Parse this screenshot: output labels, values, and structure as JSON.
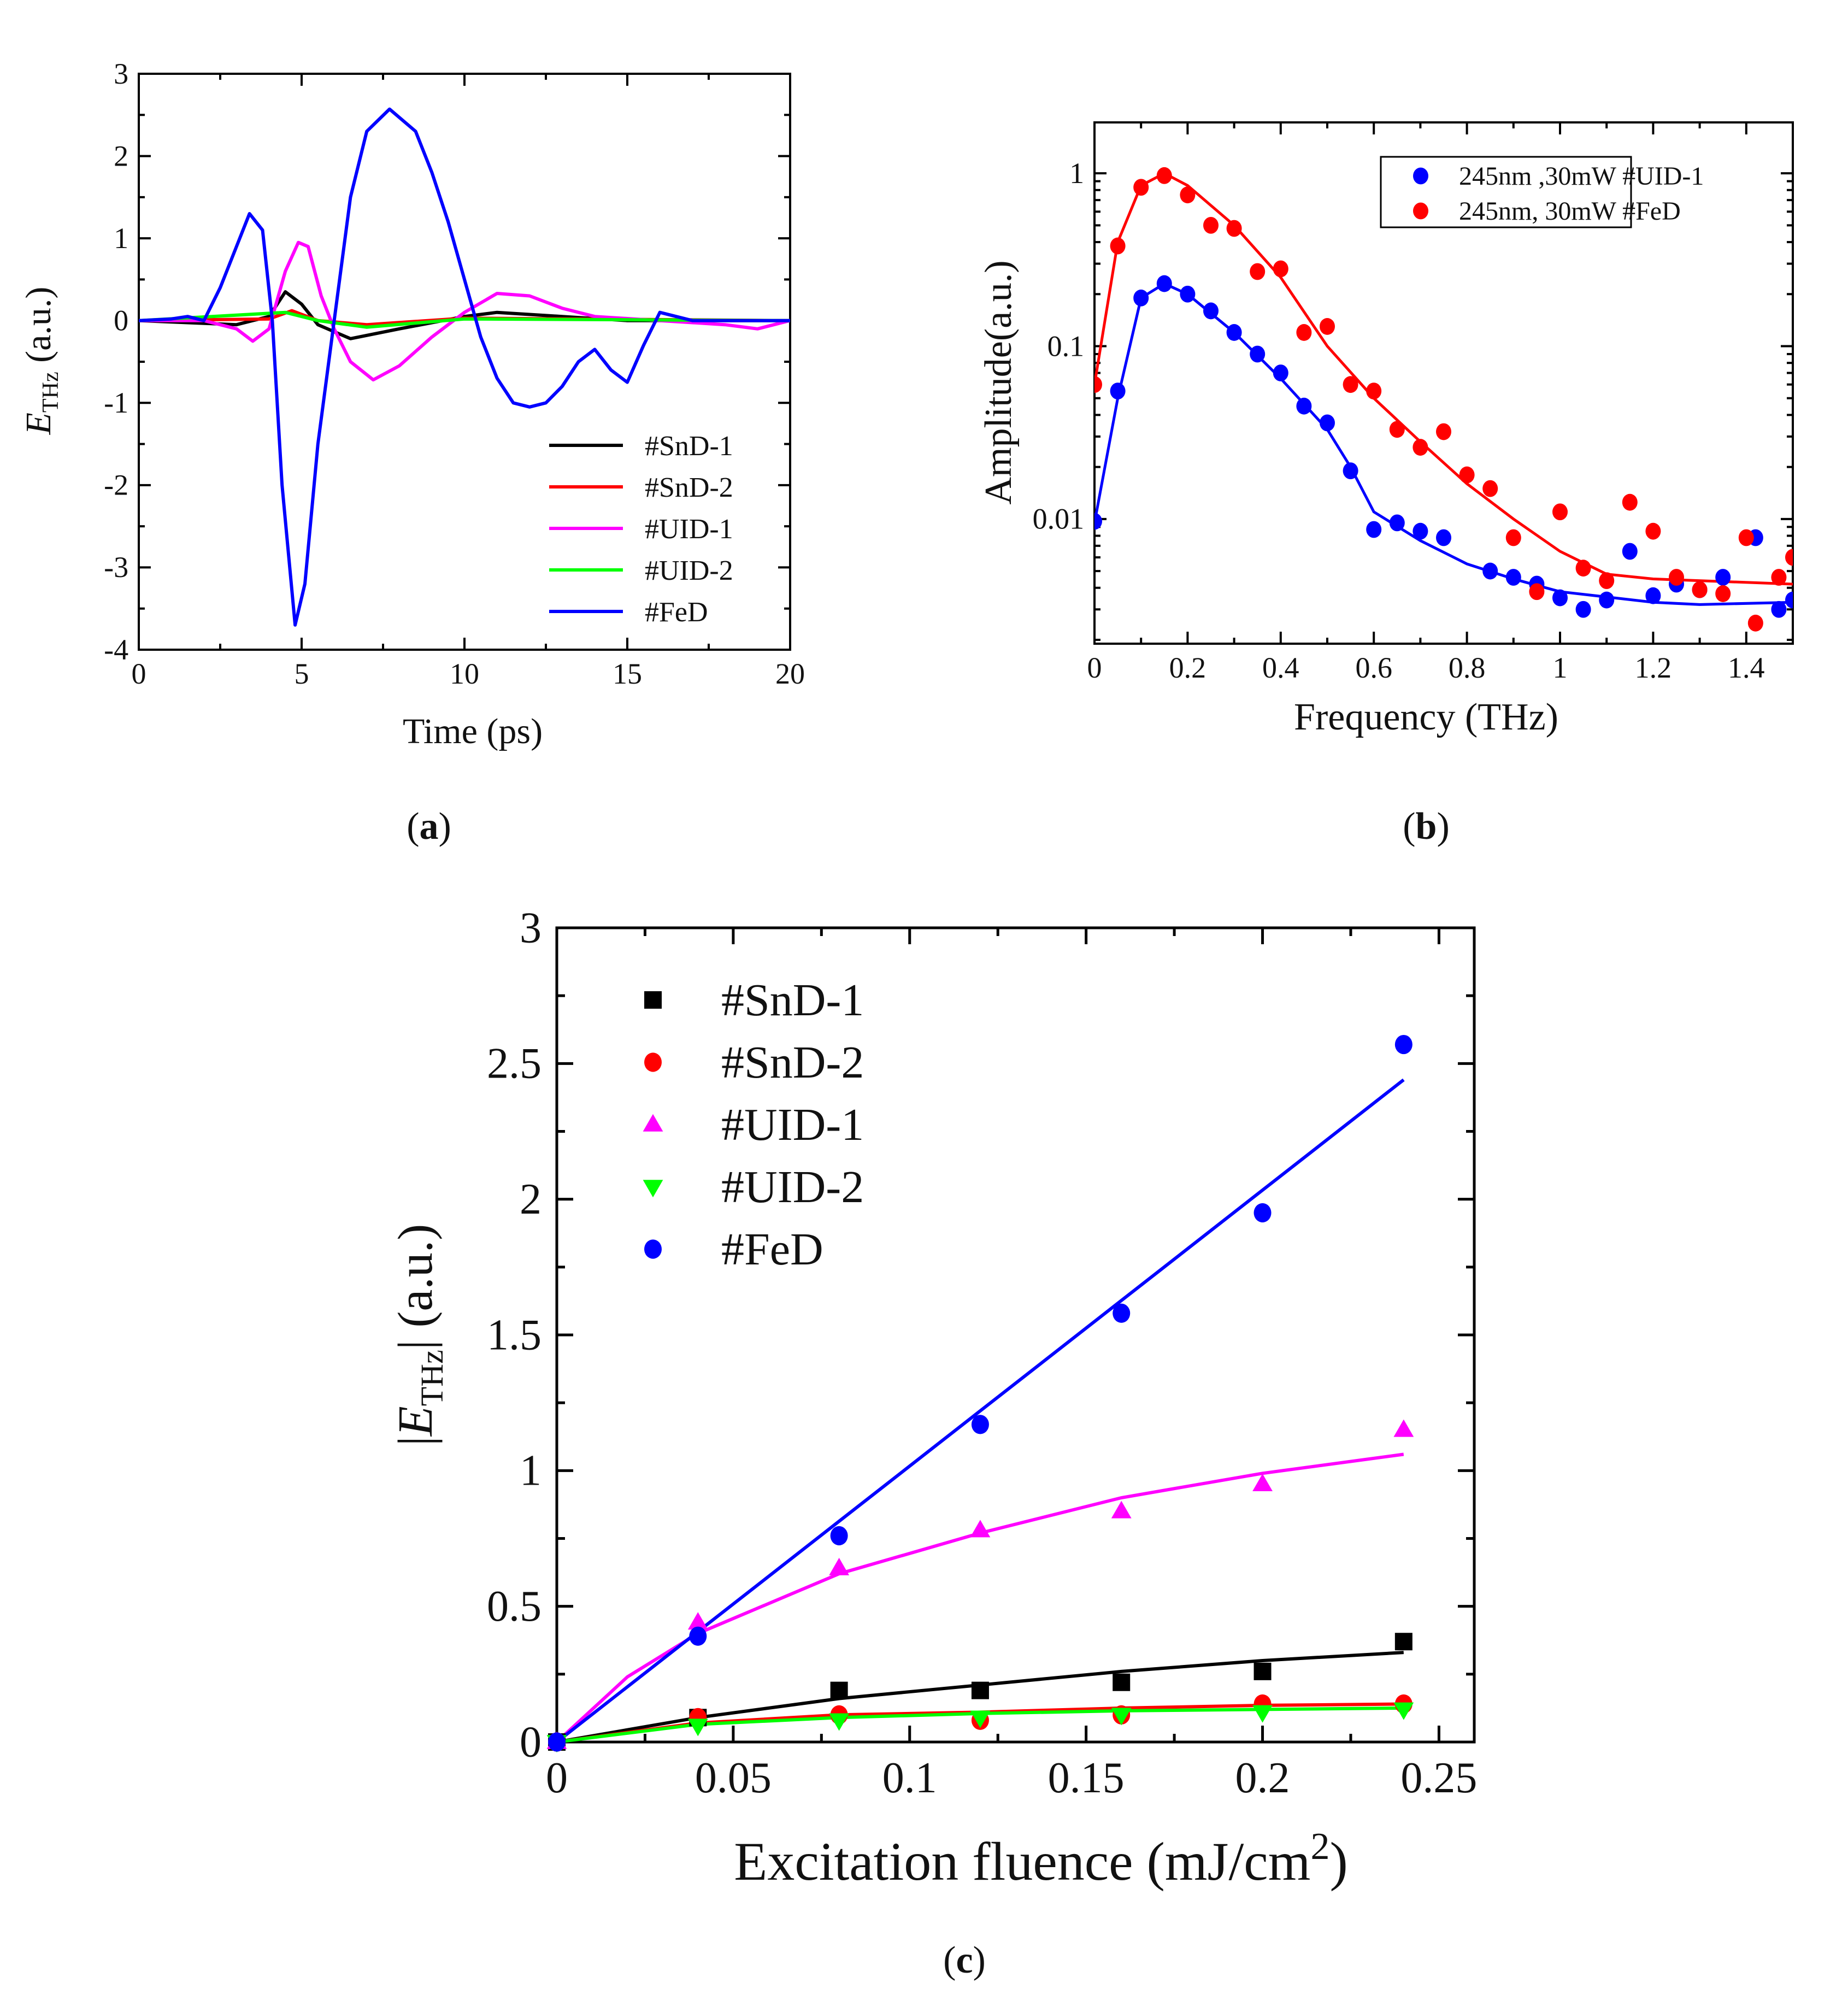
{
  "captions": {
    "a": "a",
    "b": "b",
    "c": "c"
  },
  "chart_data": [
    {
      "id": "a",
      "type": "line",
      "xlabel": "Time (ps)",
      "ylabel": {
        "main": "E",
        "sub": "THz",
        "rest": " (a.u.)"
      },
      "xlim": [
        0,
        20
      ],
      "ylim": [
        -4,
        3
      ],
      "xticks": [
        0,
        5,
        10,
        15,
        20
      ],
      "yticks": [
        -4,
        -3,
        -2,
        -1,
        0,
        1,
        2,
        3
      ],
      "legend_position": "bottom-right",
      "series": [
        {
          "name": "#SnD-1",
          "color": "#000000",
          "x": [
            0,
            3,
            4,
            4.5,
            5,
            5.5,
            6.5,
            8,
            10,
            11,
            13,
            15,
            20
          ],
          "y": [
            0,
            -0.05,
            0.05,
            0.35,
            0.2,
            -0.05,
            -0.22,
            -0.1,
            0.05,
            0.1,
            0.05,
            0,
            0
          ]
        },
        {
          "name": "#SnD-2",
          "color": "#ff0000",
          "x": [
            0,
            4,
            4.7,
            5.5,
            7,
            10,
            20
          ],
          "y": [
            0,
            0.02,
            0.12,
            0,
            -0.05,
            0.03,
            0
          ]
        },
        {
          "name": "#UID-1",
          "color": "#ff00ff",
          "x": [
            0,
            2,
            3,
            3.5,
            4,
            4.5,
            4.9,
            5.2,
            5.6,
            6,
            6.5,
            7.2,
            8,
            9,
            10,
            11,
            12,
            13,
            14,
            16,
            18,
            19,
            20
          ],
          "y": [
            0,
            0,
            -0.1,
            -0.25,
            -0.1,
            0.6,
            0.95,
            0.9,
            0.3,
            -0.1,
            -0.5,
            -0.72,
            -0.55,
            -0.2,
            0.1,
            0.33,
            0.3,
            0.15,
            0.05,
            0,
            -0.05,
            -0.1,
            0
          ]
        },
        {
          "name": "#UID-2",
          "color": "#00ff00",
          "x": [
            0,
            4.5,
            5.5,
            7,
            10,
            20
          ],
          "y": [
            0,
            0.1,
            0,
            -0.08,
            0.02,
            0
          ]
        },
        {
          "name": "#FeD",
          "color": "#0000ff",
          "x": [
            0,
            1,
            1.5,
            2,
            2.5,
            3,
            3.4,
            3.8,
            4.1,
            4.4,
            4.8,
            5.1,
            5.5,
            6,
            6.5,
            7,
            7.7,
            8.5,
            9,
            9.5,
            10,
            10.5,
            11,
            11.5,
            12,
            12.5,
            13,
            13.5,
            14,
            14.5,
            15,
            15.5,
            16,
            16.5,
            17,
            18,
            20
          ],
          "y": [
            0,
            0.02,
            0.05,
            0,
            0.4,
            0.9,
            1.3,
            1.1,
            0,
            -2,
            -3.7,
            -3.2,
            -1.5,
            0,
            1.5,
            2.3,
            2.57,
            2.3,
            1.8,
            1.2,
            0.5,
            -0.2,
            -0.7,
            -1.0,
            -1.05,
            -1.0,
            -0.8,
            -0.5,
            -0.35,
            -0.6,
            -0.75,
            -0.3,
            0.1,
            0.05,
            0,
            0,
            0
          ]
        }
      ]
    },
    {
      "id": "b",
      "type": "scatter",
      "xlabel": "Frequency (THz)",
      "ylabel": "Amplitude(a.u.)",
      "xlim": [
        0,
        1.5
      ],
      "ylim": [
        0.0019,
        1.97
      ],
      "yscale": "log",
      "xticks": [
        0,
        0.2,
        0.4,
        0.6,
        0.8,
        1,
        1.2,
        1.4
      ],
      "yticks": [
        0.01,
        0.1,
        1
      ],
      "ytick_labels": [
        "0.01",
        "0.1",
        "1"
      ],
      "legend_position": "top-right",
      "series": [
        {
          "name": "245nm ,30mW #UID-1",
          "color": "#0000ff",
          "x": [
            0,
            0.05,
            0.1,
            0.15,
            0.2,
            0.25,
            0.3,
            0.35,
            0.4,
            0.45,
            0.5,
            0.55,
            0.6,
            0.65,
            0.7,
            0.75,
            0.85,
            0.9,
            0.95,
            1,
            1.05,
            1.1,
            1.15,
            1.2,
            1.25,
            1.3,
            1.35,
            1.42,
            1.47,
            1.5
          ],
          "y": [
            0.0097,
            0.055,
            0.19,
            0.23,
            0.2,
            0.16,
            0.12,
            0.09,
            0.07,
            0.045,
            0.036,
            0.019,
            0.0087,
            0.0095,
            0.0085,
            0.0078,
            0.005,
            0.0046,
            0.0042,
            0.0035,
            0.003,
            0.0034,
            0.0065,
            0.0036,
            0.0042,
            0.0039,
            0.0046,
            0.0078,
            0.003,
            0.0034
          ],
          "fit_x": [
            0,
            0.05,
            0.1,
            0.15,
            0.2,
            0.3,
            0.4,
            0.5,
            0.55,
            0.6,
            0.7,
            0.8,
            0.9,
            1.0,
            1.2,
            1.3,
            1.5
          ],
          "fit_y": [
            0.0095,
            0.05,
            0.19,
            0.23,
            0.2,
            0.12,
            0.065,
            0.033,
            0.02,
            0.011,
            0.0075,
            0.0055,
            0.0045,
            0.0038,
            0.0033,
            0.0032,
            0.0033
          ]
        },
        {
          "name": "245nm, 30mW #FeD",
          "color": "#ff0000",
          "x": [
            0,
            0.05,
            0.1,
            0.15,
            0.2,
            0.25,
            0.3,
            0.35,
            0.4,
            0.45,
            0.5,
            0.55,
            0.6,
            0.65,
            0.7,
            0.75,
            0.8,
            0.85,
            0.9,
            0.95,
            1,
            1.05,
            1.1,
            1.15,
            1.2,
            1.25,
            1.3,
            1.35,
            1.4,
            1.42,
            1.47,
            1.5
          ],
          "y": [
            0.06,
            0.38,
            0.83,
            0.97,
            0.75,
            0.5,
            0.48,
            0.27,
            0.28,
            0.12,
            0.13,
            0.06,
            0.055,
            0.033,
            0.026,
            0.032,
            0.018,
            0.015,
            0.0078,
            0.0038,
            0.011,
            0.0052,
            0.0044,
            0.0125,
            0.0085,
            0.0046,
            0.0039,
            0.0037,
            0.0078,
            0.0025,
            0.0046,
            0.006
          ],
          "fit_x": [
            0,
            0.05,
            0.1,
            0.15,
            0.2,
            0.3,
            0.4,
            0.5,
            0.6,
            0.7,
            0.8,
            0.9,
            1.0,
            1.1,
            1.2,
            1.5
          ],
          "fit_y": [
            0.06,
            0.4,
            0.85,
            1.0,
            0.85,
            0.5,
            0.25,
            0.1,
            0.05,
            0.028,
            0.016,
            0.01,
            0.0065,
            0.0048,
            0.0045,
            0.0042
          ]
        }
      ]
    },
    {
      "id": "c",
      "type": "scatter",
      "xlabel": {
        "main": "Excitation fluence (mJ/cm",
        "sup": "2",
        "rest": ")"
      },
      "ylabel": {
        "pre": "|",
        "main": "E",
        "sub": "THz",
        "rest": "| (a.u.)"
      },
      "xlim": [
        0,
        0.26
      ],
      "ylim": [
        0,
        3
      ],
      "xticks": [
        0,
        0.05,
        0.1,
        0.15,
        0.2,
        0.25
      ],
      "yticks": [
        0,
        0.5,
        1,
        1.5,
        2,
        2.5,
        3
      ],
      "legend_position": "top-left",
      "series": [
        {
          "name": "#SnD-1",
          "color": "#000000",
          "marker": "square",
          "x": [
            0,
            0.04,
            0.08,
            0.12,
            0.16,
            0.2,
            0.24
          ],
          "y": [
            0,
            0.09,
            0.19,
            0.19,
            0.22,
            0.26,
            0.37
          ],
          "fit_x": [
            0,
            0.04,
            0.08,
            0.12,
            0.16,
            0.2,
            0.24
          ],
          "fit_y": [
            0,
            0.09,
            0.16,
            0.21,
            0.26,
            0.3,
            0.33
          ]
        },
        {
          "name": "#SnD-2",
          "color": "#ff0000",
          "marker": "circle",
          "x": [
            0,
            0.04,
            0.08,
            0.12,
            0.16,
            0.2,
            0.24
          ],
          "y": [
            0,
            0.09,
            0.1,
            0.08,
            0.1,
            0.14,
            0.14
          ],
          "fit_x": [
            0,
            0.04,
            0.08,
            0.12,
            0.16,
            0.2,
            0.24
          ],
          "fit_y": [
            0,
            0.07,
            0.1,
            0.11,
            0.125,
            0.135,
            0.14
          ]
        },
        {
          "name": "#UID-1",
          "color": "#ff00ff",
          "marker": "triangle-up",
          "x": [
            0,
            0.04,
            0.08,
            0.12,
            0.16,
            0.2,
            0.24
          ],
          "y": [
            0,
            0.44,
            0.64,
            0.78,
            0.85,
            0.95,
            1.15
          ],
          "fit_x": [
            0,
            0.02,
            0.04,
            0.08,
            0.12,
            0.16,
            0.2,
            0.24
          ],
          "fit_y": [
            0,
            0.24,
            0.4,
            0.62,
            0.77,
            0.9,
            0.99,
            1.06
          ]
        },
        {
          "name": "#UID-2",
          "color": "#00ff00",
          "marker": "triangle-down",
          "x": [
            0,
            0.04,
            0.08,
            0.12,
            0.16,
            0.2,
            0.24
          ],
          "y": [
            0,
            0.06,
            0.08,
            0.09,
            0.1,
            0.11,
            0.12
          ],
          "fit_x": [
            0,
            0.04,
            0.08,
            0.12,
            0.16,
            0.2,
            0.24
          ],
          "fit_y": [
            0,
            0.065,
            0.09,
            0.105,
            0.115,
            0.12,
            0.125
          ]
        },
        {
          "name": "#FeD",
          "color": "#0000ff",
          "marker": "circle",
          "x": [
            0,
            0.04,
            0.08,
            0.12,
            0.16,
            0.2,
            0.24
          ],
          "y": [
            0,
            0.39,
            0.76,
            1.17,
            1.58,
            1.95,
            2.57
          ],
          "fit_x": [
            0,
            0.24
          ],
          "fit_y": [
            0,
            2.44
          ]
        }
      ]
    }
  ]
}
